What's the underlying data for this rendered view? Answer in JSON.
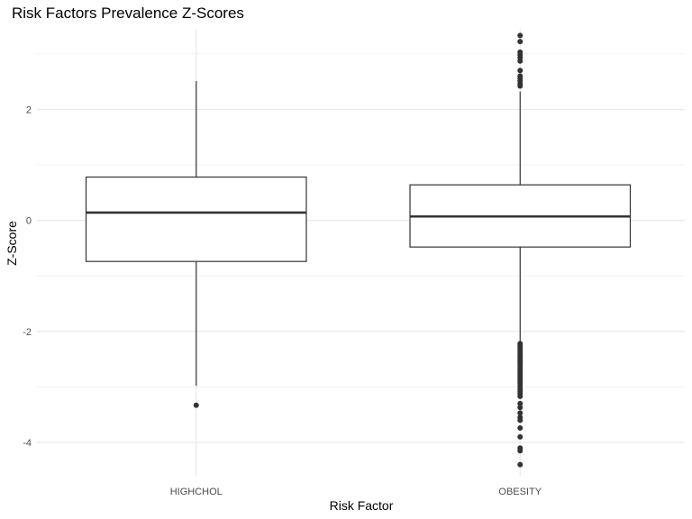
{
  "chart_data": {
    "type": "boxplot",
    "title": "Risk Factors Prevalence Z-Scores",
    "xlabel": "Risk Factor",
    "ylabel": "Z-Score",
    "categories": [
      "HIGHCHOL",
      "OBESITY"
    ],
    "ylim": [
      -4.6,
      3.45
    ],
    "yticks": [
      -4,
      -2,
      0,
      2
    ],
    "ytick_labels": [
      "-4",
      "-2",
      "0",
      "2"
    ],
    "grid": true,
    "boxes": [
      {
        "category": "HIGHCHOL",
        "whisker_low": -2.98,
        "q1": -0.74,
        "median": 0.14,
        "q3": 0.78,
        "whisker_high": 2.51,
        "outliers": [
          -3.33
        ]
      },
      {
        "category": "OBESITY",
        "whisker_low": -2.2,
        "q1": -0.48,
        "median": 0.07,
        "q3": 0.64,
        "whisker_high": 2.32,
        "outliers": [
          2.42,
          2.46,
          2.51,
          2.56,
          2.6,
          2.7,
          2.87,
          2.93,
          2.98,
          3.03,
          3.22,
          3.33,
          -2.22,
          -2.25,
          -2.28,
          -2.32,
          -2.36,
          -2.4,
          -2.44,
          -2.47,
          -2.51,
          -2.54,
          -2.58,
          -2.62,
          -2.66,
          -2.7,
          -2.74,
          -2.78,
          -2.82,
          -2.86,
          -2.9,
          -2.94,
          -2.99,
          -3.04,
          -3.08,
          -3.12,
          -3.17,
          -3.3,
          -3.37,
          -3.47,
          -3.55,
          -3.6,
          -3.74,
          -3.9,
          -4.1,
          -4.15,
          -4.4
        ]
      }
    ]
  }
}
